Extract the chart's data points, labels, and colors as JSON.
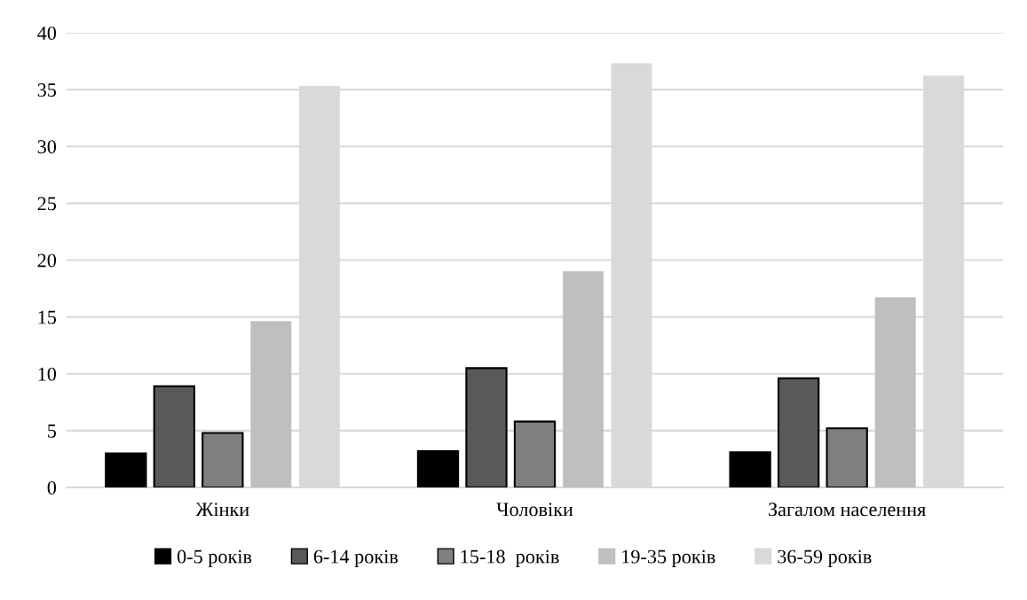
{
  "chart_data": {
    "type": "bar",
    "categories": [
      "Жінки",
      "Чоловіки",
      "Загалом населення"
    ],
    "series": [
      {
        "name": "0-5 років",
        "color": "#000000",
        "values": [
          3.0,
          3.2,
          3.1
        ]
      },
      {
        "name": "6-14 років",
        "color": "#595959",
        "values": [
          8.9,
          10.5,
          9.6
        ]
      },
      {
        "name": "15-18  років",
        "color": "#7f7f7f",
        "values": [
          4.8,
          5.8,
          5.2
        ]
      },
      {
        "name": "19-35 років",
        "color": "#bfbfbf",
        "values": [
          14.6,
          19.0,
          16.7
        ]
      },
      {
        "name": "36-59 років",
        "color": "#d9d9d9",
        "values": [
          35.3,
          37.3,
          36.2
        ]
      }
    ],
    "ylim": [
      0,
      40
    ],
    "yticks": [
      0,
      5,
      10,
      15,
      20,
      25,
      30,
      35,
      40
    ],
    "grid": "y",
    "legend": "bottom"
  }
}
